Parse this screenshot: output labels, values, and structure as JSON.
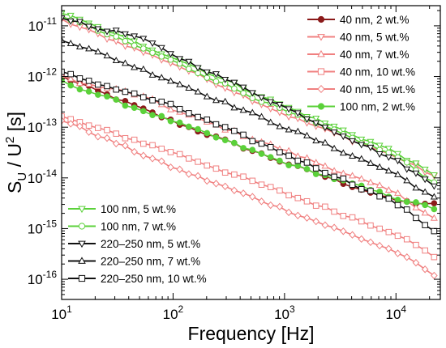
{
  "chart_data": {
    "type": "line",
    "xlabel": "Frequency [Hz]",
    "ylabel_main": "S",
    "ylabel_sub": "U",
    "ylabel_tail": " / U",
    "ylabel_sup": "2",
    "ylabel_unit": " [s]",
    "xscale": "log",
    "yscale": "log",
    "xlim": [
      10,
      25000
    ],
    "ylim": [
      4e-17,
      2.5e-11
    ],
    "x_ticks": [
      {
        "value": 10,
        "base": "10",
        "exp": "1"
      },
      {
        "value": 100,
        "base": "10",
        "exp": "2"
      },
      {
        "value": 1000,
        "base": "10",
        "exp": "3"
      },
      {
        "value": 10000,
        "base": "10",
        "exp": "4"
      }
    ],
    "y_ticks": [
      {
        "value": 1e-16,
        "base": "10",
        "exp": "-16"
      },
      {
        "value": 1e-15,
        "base": "10",
        "exp": "-15"
      },
      {
        "value": 1e-14,
        "base": "10",
        "exp": "-14"
      },
      {
        "value": 1e-13,
        "base": "10",
        "exp": "-13"
      },
      {
        "value": 1e-12,
        "base": "10",
        "exp": "-12"
      },
      {
        "value": 1e-11,
        "base": "10",
        "exp": "-11"
      }
    ],
    "grid": false,
    "legends": [
      "top-right",
      "bottom-left"
    ],
    "series": [
      {
        "name": "40 nm, 2 wt.%",
        "legend": "top-right",
        "color": "#8b1a1a",
        "marker": "circle",
        "filled": true,
        "anchors": [
          [
            10,
            1e-12
          ],
          [
            100,
            1.3e-13
          ],
          [
            1000,
            2e-14
          ],
          [
            10000,
            3.5e-15
          ],
          [
            22000,
            3e-15
          ]
        ],
        "bump": 0
      },
      {
        "name": "40 nm, 5 wt.%",
        "legend": "top-right",
        "color": "#f08080",
        "marker": "triangle-down",
        "filled": false,
        "anchors": [
          [
            10,
            1.3e-11
          ],
          [
            100,
            1.8e-12
          ],
          [
            1000,
            1.8e-13
          ],
          [
            10000,
            2.6e-14
          ],
          [
            22000,
            1.1e-14
          ]
        ],
        "bump": 0
      },
      {
        "name": "40 nm, 7 wt.%",
        "legend": "top-right",
        "color": "#f08080",
        "marker": "triangle-up",
        "filled": false,
        "anchors": [
          [
            10,
            1e-12
          ],
          [
            100,
            2.2e-13
          ],
          [
            1000,
            3.5e-14
          ],
          [
            10000,
            5e-15
          ],
          [
            22000,
            1.6e-15
          ]
        ],
        "bump": 0.04
      },
      {
        "name": "40 nm, 10 wt.%",
        "legend": "top-right",
        "color": "#f08080",
        "marker": "square",
        "filled": false,
        "anchors": [
          [
            10,
            1.6e-13
          ],
          [
            100,
            3.2e-14
          ],
          [
            1000,
            5e-15
          ],
          [
            10000,
            8e-16
          ],
          [
            22000,
            2.8e-16
          ]
        ],
        "bump": 0
      },
      {
        "name": "40 nm, 15 wt.%",
        "legend": "top-right",
        "color": "#f08080",
        "marker": "diamond",
        "filled": false,
        "anchors": [
          [
            10,
            1.4e-13
          ],
          [
            100,
            1.6e-14
          ],
          [
            1000,
            2.4e-15
          ],
          [
            10000,
            3.5e-16
          ],
          [
            22000,
            1.2e-16
          ]
        ],
        "bump": 0
      },
      {
        "name": "100 nm, 2 wt.%",
        "legend": "top-right",
        "color": "#5bd13a",
        "marker": "circle",
        "filled": true,
        "anchors": [
          [
            10,
            8e-13
          ],
          [
            100,
            1.3e-13
          ],
          [
            1000,
            2e-14
          ],
          [
            10000,
            4e-15
          ],
          [
            22000,
            2.5e-15
          ]
        ],
        "bump": 0
      },
      {
        "name": "100 nm, 5 wt.%",
        "legend": "bottom-left",
        "color": "#5bd13a",
        "marker": "triangle-down",
        "filled": false,
        "anchors": [
          [
            10,
            1.8e-11
          ],
          [
            100,
            2.4e-12
          ],
          [
            1000,
            2.6e-13
          ],
          [
            10000,
            3.2e-14
          ],
          [
            22000,
            1.1e-14
          ]
        ],
        "bump": 0
      },
      {
        "name": "100 nm, 7 wt.%",
        "legend": "bottom-left",
        "color": "#5bd13a",
        "marker": "circle",
        "filled": false,
        "anchors": [
          [
            10,
            1.6e-11
          ],
          [
            100,
            2e-12
          ],
          [
            1000,
            2.1e-13
          ],
          [
            10000,
            2.7e-14
          ],
          [
            22000,
            8e-15
          ]
        ],
        "bump": 0
      },
      {
        "name": "220–250 nm, 5 wt.%",
        "legend": "bottom-left",
        "color": "#111111",
        "marker": "triangle-down",
        "filled": false,
        "anchors": [
          [
            10,
            1.5e-11
          ],
          [
            100,
            2.7e-12
          ],
          [
            1000,
            2.5e-13
          ],
          [
            10000,
            2.2e-14
          ],
          [
            22000,
            7e-15
          ]
        ],
        "bump": 0.05
      },
      {
        "name": "220–250 nm, 7 wt.%",
        "legend": "bottom-left",
        "color": "#111111",
        "marker": "triangle-up",
        "filled": false,
        "anchors": [
          [
            10,
            5.5e-12
          ],
          [
            100,
            8e-13
          ],
          [
            1000,
            1e-13
          ],
          [
            10000,
            1.2e-14
          ],
          [
            22000,
            4e-15
          ]
        ],
        "bump": 0
      },
      {
        "name": "220–250 nm, 10 wt.%",
        "legend": "bottom-left",
        "color": "#111111",
        "marker": "square",
        "filled": false,
        "anchors": [
          [
            10,
            1.2e-12
          ],
          [
            100,
            2.6e-13
          ],
          [
            1000,
            3e-14
          ],
          [
            10000,
            3.2e-15
          ],
          [
            22000,
            9e-16
          ]
        ],
        "bump": 0
      }
    ]
  }
}
